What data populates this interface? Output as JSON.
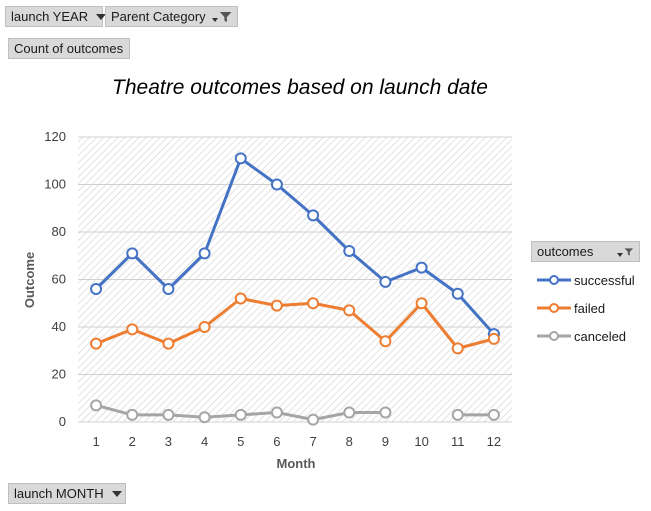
{
  "pivot": {
    "year_filter": "launch YEAR",
    "parent_filter": "Parent Category",
    "values_field": "Count of outcomes",
    "axis_field": "launch MONTH",
    "legend_field": "outcomes"
  },
  "chart_data": {
    "type": "line",
    "title": "Theatre outcomes based on launch date",
    "xlabel": "Month",
    "ylabel": "Outcome",
    "categories": [
      "1",
      "2",
      "3",
      "4",
      "5",
      "6",
      "7",
      "8",
      "9",
      "10",
      "11",
      "12"
    ],
    "ylim": [
      0,
      120
    ],
    "yticks": [
      0,
      20,
      40,
      60,
      80,
      100,
      120
    ],
    "grid": true,
    "legend_position": "right",
    "series": [
      {
        "name": "successful",
        "color": "#4472c4",
        "values": [
          56,
          71,
          56,
          71,
          111,
          100,
          87,
          72,
          59,
          65,
          54,
          37
        ]
      },
      {
        "name": "failed",
        "color": "#ed7d31",
        "values": [
          33,
          39,
          33,
          40,
          52,
          49,
          50,
          47,
          34,
          50,
          31,
          35
        ]
      },
      {
        "name": "canceled",
        "color": "#a5a5a5",
        "values": [
          7,
          3,
          3,
          2,
          3,
          4,
          1,
          4,
          4,
          null,
          3,
          3
        ]
      }
    ]
  }
}
